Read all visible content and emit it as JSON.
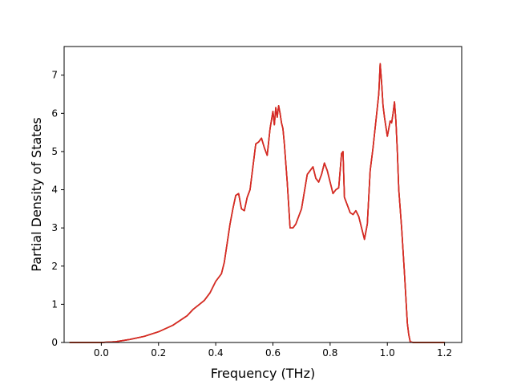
{
  "chart_data": {
    "type": "line",
    "title": "",
    "xlabel": "Frequency (THz)",
    "ylabel": "Partial Density of States",
    "xlim": [
      -0.13,
      1.26
    ],
    "ylim": [
      0,
      7.75
    ],
    "xticks": [
      0.0,
      0.2,
      0.4,
      0.6,
      0.8,
      1.0,
      1.2
    ],
    "xtick_labels": [
      "0.0",
      "0.2",
      "0.4",
      "0.6",
      "0.8",
      "1.0",
      "1.2"
    ],
    "yticks": [
      0,
      1,
      2,
      3,
      4,
      5,
      6,
      7
    ],
    "ytick_labels": [
      "0",
      "1",
      "2",
      "3",
      "4",
      "5",
      "6",
      "7"
    ],
    "grid": false,
    "legend": "none",
    "colors": [
      "#2ca02c",
      "#d62728",
      "#ff7f0e"
    ],
    "series": [
      {
        "x": [
          -0.11,
          0.0,
          0.05,
          0.1,
          0.15,
          0.2,
          0.25,
          0.3,
          0.32,
          0.34,
          0.36,
          0.38,
          0.4,
          0.42,
          0.43,
          0.44,
          0.45,
          0.46,
          0.47,
          0.48,
          0.49,
          0.5,
          0.51,
          0.52,
          0.53,
          0.54,
          0.55,
          0.56,
          0.57,
          0.58,
          0.59,
          0.6,
          0.605,
          0.61,
          0.615,
          0.62,
          0.625,
          0.63,
          0.635,
          0.64,
          0.65,
          0.66,
          0.67,
          0.68,
          0.69,
          0.7,
          0.72,
          0.73,
          0.74,
          0.75,
          0.76,
          0.77,
          0.78,
          0.79,
          0.8,
          0.81,
          0.82,
          0.83,
          0.84,
          0.845,
          0.85,
          0.86,
          0.87,
          0.88,
          0.89,
          0.9,
          0.91,
          0.92,
          0.93,
          0.94,
          0.95,
          0.96,
          0.97,
          0.975,
          0.98,
          0.985,
          0.99,
          1.0,
          1.01,
          1.015,
          1.02,
          1.025,
          1.03,
          1.035,
          1.04,
          1.05,
          1.06,
          1.07,
          1.075,
          1.08,
          1.09,
          1.1,
          1.15,
          1.2
        ],
        "values": [
          0,
          0,
          0.02,
          0.08,
          0.16,
          0.28,
          0.45,
          0.7,
          0.86,
          0.98,
          1.1,
          1.3,
          1.6,
          1.8,
          2.1,
          2.6,
          3.1,
          3.5,
          3.85,
          3.9,
          3.5,
          3.45,
          3.8,
          4.0,
          4.6,
          5.2,
          5.25,
          5.35,
          5.1,
          4.9,
          5.6,
          6.05,
          5.7,
          6.15,
          5.9,
          6.2,
          6.0,
          5.75,
          5.6,
          5.2,
          4.2,
          3.0,
          3.0,
          3.1,
          3.3,
          3.5,
          4.4,
          4.5,
          4.6,
          4.3,
          4.2,
          4.4,
          4.7,
          4.5,
          4.2,
          3.9,
          4.0,
          4.05,
          4.95,
          5.0,
          3.8,
          3.6,
          3.4,
          3.35,
          3.45,
          3.3,
          3.0,
          2.7,
          3.1,
          4.5,
          5.1,
          5.8,
          6.5,
          7.3,
          6.8,
          6.2,
          5.9,
          5.4,
          5.8,
          5.75,
          6.0,
          6.3,
          5.8,
          5.0,
          4.0,
          3.0,
          1.8,
          0.5,
          0.2,
          0.02,
          0,
          0,
          0,
          0
        ]
      }
    ]
  }
}
